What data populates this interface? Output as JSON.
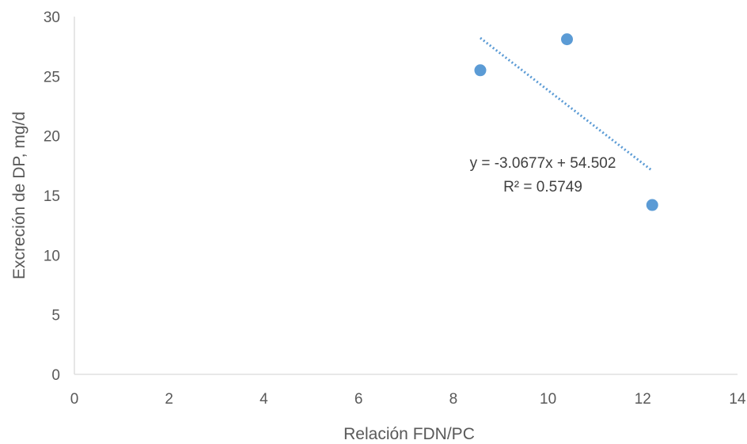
{
  "chart_data": {
    "type": "scatter",
    "xlabel": "Relación FDN/PC",
    "ylabel": "Excreción de DP, mg/d",
    "xlim": [
      0,
      14
    ],
    "ylim": [
      0,
      30
    ],
    "x_ticks": [
      0,
      2,
      4,
      6,
      8,
      10,
      12,
      14
    ],
    "y_ticks": [
      0,
      5,
      10,
      15,
      20,
      25,
      30
    ],
    "x_tick_labels": [
      "0",
      "2",
      "4",
      "6",
      "8",
      "10",
      "12",
      "14"
    ],
    "y_tick_labels": [
      "0",
      "5",
      "10",
      "15",
      "20",
      "25",
      "30"
    ],
    "grid": false,
    "series": [
      {
        "points": [
          {
            "x": 8.57,
            "y": 25.5
          },
          {
            "x": 10.4,
            "y": 28.1
          },
          {
            "x": 12.2,
            "y": 14.2
          }
        ],
        "color": "#5b9bd5"
      }
    ],
    "trendline": {
      "slope": -3.0677,
      "intercept": 54.502,
      "x_range": [
        8.57,
        12.2
      ],
      "style": "dotted",
      "color": "#5b9bd5",
      "equation": "y = -3.0677x + 54.502",
      "r_squared": "R² = 0.5749"
    }
  }
}
